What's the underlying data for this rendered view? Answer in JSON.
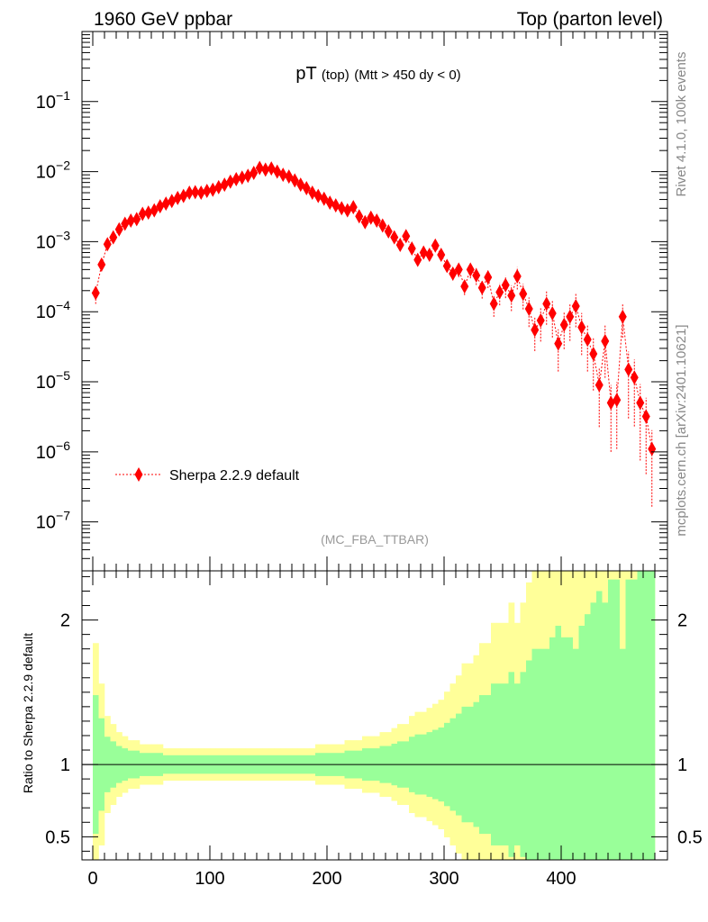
{
  "header": {
    "left": "1960 GeV ppbar",
    "right": "Top (parton level)"
  },
  "side_labels": {
    "rivet": "Rivet 4.1.0,  100k events",
    "mcplots": "mcplots.cern.ch [arXiv:2401.10621]"
  },
  "chart_data": [
    {
      "type": "scatter",
      "title": "pT",
      "title_suffix": "(top)",
      "title_cut": "(Mtt > 450 dy < 0)",
      "analysis": "(MC_FBA_TTBAR)",
      "yscale": "log",
      "xlim": [
        -9,
        482
      ],
      "ylim": [
        2e-08,
        1.0
      ],
      "ytick_powers": [
        -7,
        -6,
        -5,
        -4,
        -3,
        -2,
        -1
      ],
      "series": [
        {
          "name": "Sherpa 2.2.9 default",
          "color": "#ff0000",
          "bin_width": 5,
          "x": [
            2.5,
            7.5,
            12.5,
            17.5,
            22.5,
            27.5,
            32.5,
            37.5,
            42.5,
            47.5,
            52.5,
            57.5,
            62.5,
            67.5,
            72.5,
            77.5,
            82.5,
            87.5,
            92.5,
            97.5,
            102.5,
            107.5,
            112.5,
            117.5,
            122.5,
            127.5,
            132.5,
            137.5,
            142.5,
            147.5,
            152.5,
            157.5,
            162.5,
            167.5,
            172.5,
            177.5,
            182.5,
            187.5,
            192.5,
            197.5,
            202.5,
            207.5,
            212.5,
            217.5,
            222.5,
            227.5,
            232.5,
            237.5,
            242.5,
            247.5,
            252.5,
            257.5,
            262.5,
            267.5,
            272.5,
            277.5,
            282.5,
            287.5,
            292.5,
            297.5,
            302.5,
            307.5,
            312.5,
            317.5,
            322.5,
            327.5,
            332.5,
            337.5,
            342.5,
            347.5,
            352.5,
            357.5,
            362.5,
            367.5,
            372.5,
            377.5,
            382.5,
            387.5,
            392.5,
            397.5,
            402.5,
            407.5,
            412.5,
            417.5,
            422.5,
            427.5,
            432.5,
            437.5,
            442.5,
            447.5,
            452.5,
            457.5,
            462.5,
            467.5,
            472.5,
            477.5
          ],
          "y": [
            0.000185,
            0.00047,
            0.00092,
            0.00115,
            0.0015,
            0.0018,
            0.002,
            0.0021,
            0.0025,
            0.0026,
            0.0028,
            0.0032,
            0.0035,
            0.0038,
            0.0042,
            0.0045,
            0.005,
            0.0051,
            0.005,
            0.0053,
            0.0055,
            0.006,
            0.0065,
            0.0072,
            0.0078,
            0.0082,
            0.0087,
            0.0096,
            0.0113,
            0.0107,
            0.0111,
            0.01,
            0.009,
            0.0085,
            0.0075,
            0.0065,
            0.0058,
            0.005,
            0.0045,
            0.0041,
            0.0036,
            0.0033,
            0.003,
            0.0028,
            0.0031,
            0.0023,
            0.0019,
            0.0022,
            0.002,
            0.0017,
            0.0014,
            0.00115,
            0.0009,
            0.0012,
            0.0008,
            0.00055,
            0.0007,
            0.00065,
            0.00088,
            0.00065,
            0.00045,
            0.00035,
            0.0004,
            0.00023,
            0.0004,
            0.00033,
            0.00022,
            0.00031,
            0.00013,
            0.00019,
            0.00024,
            0.00017,
            0.00032,
            0.00018,
            0.00011,
            5.5e-05,
            7.5e-05,
            0.00013,
            9.5e-05,
            3.5e-05,
            6.5e-05,
            8.5e-05,
            0.00012,
            6e-05,
            4e-05,
            2.5e-05,
            9e-06,
            3.8e-05,
            5e-06,
            5.5e-06,
            8.5e-05,
            1.5e-05,
            1.15e-05,
            5e-06,
            3.2e-06,
            1.1e-06
          ],
          "y_err_low_frac": [
            0.3,
            0.2,
            0.12,
            0.1,
            0.08,
            0.07,
            0.06,
            0.06,
            0.05,
            0.05,
            0.05,
            0.05,
            0.04,
            0.04,
            0.04,
            0.04,
            0.04,
            0.04,
            0.04,
            0.04,
            0.04,
            0.04,
            0.04,
            0.04,
            0.04,
            0.04,
            0.04,
            0.04,
            0.04,
            0.04,
            0.04,
            0.04,
            0.04,
            0.04,
            0.04,
            0.04,
            0.04,
            0.04,
            0.05,
            0.05,
            0.05,
            0.05,
            0.05,
            0.06,
            0.06,
            0.06,
            0.07,
            0.07,
            0.07,
            0.08,
            0.08,
            0.09,
            0.1,
            0.1,
            0.12,
            0.13,
            0.13,
            0.14,
            0.15,
            0.16,
            0.18,
            0.2,
            0.22,
            0.25,
            0.25,
            0.27,
            0.3,
            0.3,
            0.35,
            0.35,
            0.35,
            0.4,
            0.35,
            0.4,
            0.45,
            0.5,
            0.5,
            0.5,
            0.55,
            0.6,
            0.55,
            0.55,
            0.5,
            0.6,
            0.65,
            0.7,
            0.75,
            0.7,
            0.8,
            0.8,
            0.5,
            0.8,
            0.8,
            0.85,
            0.85,
            0.85
          ],
          "y_err_high_frac": [
            0.3,
            0.2,
            0.12,
            0.1,
            0.08,
            0.07,
            0.06,
            0.06,
            0.05,
            0.05,
            0.05,
            0.05,
            0.04,
            0.04,
            0.04,
            0.04,
            0.04,
            0.04,
            0.04,
            0.04,
            0.04,
            0.04,
            0.04,
            0.04,
            0.04,
            0.04,
            0.04,
            0.04,
            0.04,
            0.04,
            0.04,
            0.04,
            0.04,
            0.04,
            0.04,
            0.04,
            0.04,
            0.04,
            0.05,
            0.05,
            0.05,
            0.05,
            0.05,
            0.06,
            0.06,
            0.06,
            0.07,
            0.07,
            0.07,
            0.08,
            0.08,
            0.09,
            0.1,
            0.1,
            0.12,
            0.13,
            0.13,
            0.14,
            0.15,
            0.16,
            0.18,
            0.2,
            0.22,
            0.25,
            0.25,
            0.27,
            0.3,
            0.3,
            0.35,
            0.35,
            0.35,
            0.4,
            0.35,
            0.4,
            0.45,
            0.5,
            0.5,
            0.5,
            0.55,
            0.6,
            0.55,
            0.55,
            0.5,
            0.6,
            0.65,
            0.7,
            0.75,
            0.7,
            0.8,
            0.8,
            0.5,
            0.8,
            0.8,
            0.85,
            0.85,
            0.85
          ]
        }
      ]
    },
    {
      "type": "area",
      "ylabel": "Ratio to Sherpa 2.2.9 default",
      "xlim": [
        -9,
        482
      ],
      "ylim": [
        0.34,
        2.34
      ],
      "x_ticks": [
        0,
        100,
        200,
        300,
        400
      ],
      "y_ticks": [
        0.5,
        1,
        2
      ],
      "reference_line": 1,
      "bands": [
        {
          "name": "stat",
          "color": "#99ff99"
        },
        {
          "name": "total",
          "color": "#ffff99"
        }
      ]
    }
  ]
}
